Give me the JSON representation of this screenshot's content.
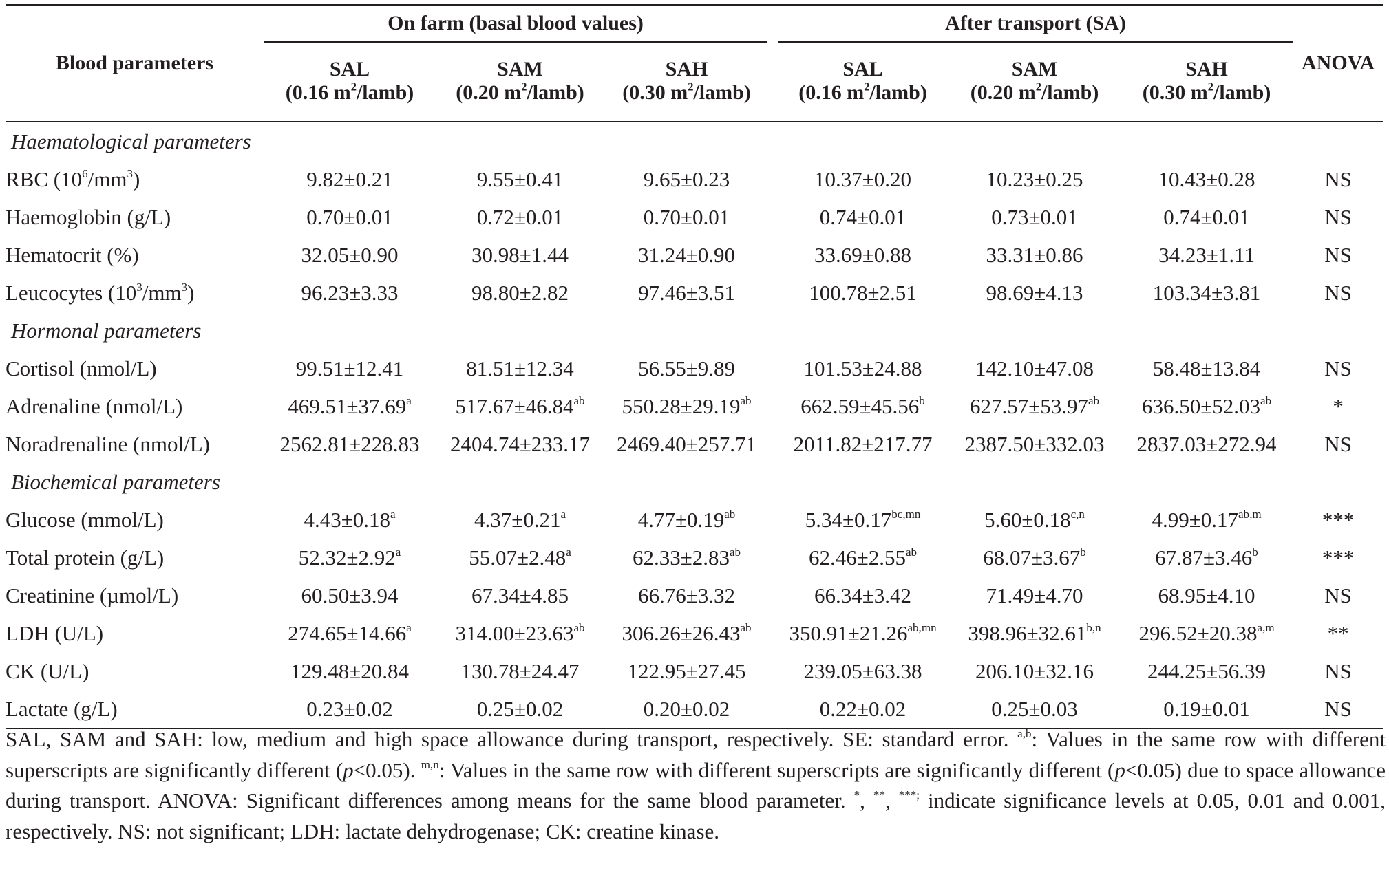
{
  "table": {
    "header": {
      "blood_parameters": "Blood parameters",
      "group_on_farm": "On farm (basal blood values)",
      "group_after_transport": "After transport (SA)",
      "anova": "ANOVA",
      "columns": [
        {
          "name": "SAL",
          "space": "(0.16 m",
          "sup": "2",
          "unit": "/lamb)"
        },
        {
          "name": "SAM",
          "space": "(0.20 m",
          "sup": "2",
          "unit": "/lamb)"
        },
        {
          "name": "SAH",
          "space": "(0.30 m",
          "sup": "2",
          "unit": "/lamb)"
        },
        {
          "name": "SAL",
          "space": "(0.16 m",
          "sup": "2",
          "unit": "/lamb)"
        },
        {
          "name": "SAM",
          "space": "(0.20 m",
          "sup": "2",
          "unit": "/lamb)"
        },
        {
          "name": "SAH",
          "space": "(0.30 m",
          "sup": "2",
          "unit": "/lamb)"
        }
      ]
    },
    "sections": [
      {
        "title": "Haematological parameters",
        "rows": [
          {
            "label": "RBC (10",
            "label_sup": "6",
            "label_mid": "/mm",
            "label_sup2": "3",
            "label_end": ")",
            "values": [
              {
                "v": "9.82±0.21"
              },
              {
                "v": "9.55±0.41"
              },
              {
                "v": "9.65±0.23"
              },
              {
                "v": "10.37±0.20"
              },
              {
                "v": "10.23±0.25"
              },
              {
                "v": "10.43±0.28"
              }
            ],
            "anova": "NS"
          },
          {
            "label": "Haemoglobin (g/L)",
            "values": [
              {
                "v": "0.70±0.01"
              },
              {
                "v": "0.72±0.01"
              },
              {
                "v": "0.70±0.01"
              },
              {
                "v": "0.74±0.01"
              },
              {
                "v": "0.73±0.01"
              },
              {
                "v": "0.74±0.01"
              }
            ],
            "anova": "NS"
          },
          {
            "label": "Hematocrit (%)",
            "values": [
              {
                "v": "32.05±0.90"
              },
              {
                "v": "30.98±1.44"
              },
              {
                "v": "31.24±0.90"
              },
              {
                "v": "33.69±0.88"
              },
              {
                "v": "33.31±0.86"
              },
              {
                "v": "34.23±1.11"
              }
            ],
            "anova": "NS"
          },
          {
            "label": "Leucocytes (10",
            "label_sup": "3",
            "label_mid": "/mm",
            "label_sup2": "3",
            "label_end": ")",
            "values": [
              {
                "v": "96.23±3.33"
              },
              {
                "v": "98.80±2.82"
              },
              {
                "v": "97.46±3.51"
              },
              {
                "v": "100.78±2.51"
              },
              {
                "v": "98.69±4.13"
              },
              {
                "v": "103.34±3.81"
              }
            ],
            "anova": "NS"
          }
        ]
      },
      {
        "title": "Hormonal parameters",
        "rows": [
          {
            "label": "Cortisol (nmol/L)",
            "values": [
              {
                "v": "99.51±12.41"
              },
              {
                "v": "81.51±12.34"
              },
              {
                "v": "56.55±9.89"
              },
              {
                "v": "101.53±24.88"
              },
              {
                "v": "142.10±47.08"
              },
              {
                "v": "58.48±13.84"
              }
            ],
            "anova": "NS"
          },
          {
            "label": "Adrenaline (nmol/L)",
            "values": [
              {
                "v": "469.51±37.69",
                "sup": "a"
              },
              {
                "v": "517.67±46.84",
                "sup": "ab"
              },
              {
                "v": "550.28±29.19",
                "sup": "ab"
              },
              {
                "v": "662.59±45.56",
                "sup": "b"
              },
              {
                "v": "627.57±53.97",
                "sup": "ab"
              },
              {
                "v": "636.50±52.03",
                "sup": "ab"
              }
            ],
            "anova": "*"
          },
          {
            "label": "Noradrenaline (nmol/L)",
            "values": [
              {
                "v": "2562.81±228.83"
              },
              {
                "v": "2404.74±233.17"
              },
              {
                "v": "2469.40±257.71"
              },
              {
                "v": "2011.82±217.77"
              },
              {
                "v": "2387.50±332.03"
              },
              {
                "v": "2837.03±272.94"
              }
            ],
            "anova": "NS"
          }
        ]
      },
      {
        "title": "Biochemical parameters",
        "rows": [
          {
            "label": "Glucose (mmol/L)",
            "values": [
              {
                "v": "4.43±0.18",
                "sup": "a"
              },
              {
                "v": "4.37±0.21",
                "sup": "a"
              },
              {
                "v": "4.77±0.19",
                "sup": "ab"
              },
              {
                "v": "5.34±0.17",
                "sup": "bc,mn"
              },
              {
                "v": "5.60±0.18",
                "sup": "c,n"
              },
              {
                "v": "4.99±0.17",
                "sup": "ab,m"
              }
            ],
            "anova": "***"
          },
          {
            "label": "Total protein (g/L)",
            "values": [
              {
                "v": "52.32±2.92",
                "sup": "a"
              },
              {
                "v": "55.07±2.48",
                "sup": "a"
              },
              {
                "v": "62.33±2.83",
                "sup": "ab"
              },
              {
                "v": "62.46±2.55",
                "sup": "ab"
              },
              {
                "v": "68.07±3.67",
                "sup": "b"
              },
              {
                "v": "67.87±3.46",
                "sup": "b"
              }
            ],
            "anova": "***"
          },
          {
            "label": "Creatinine (µmol/L)",
            "values": [
              {
                "v": "60.50±3.94"
              },
              {
                "v": "67.34±4.85"
              },
              {
                "v": "66.76±3.32"
              },
              {
                "v": "66.34±3.42"
              },
              {
                "v": "71.49±4.70"
              },
              {
                "v": "68.95±4.10"
              }
            ],
            "anova": "NS"
          },
          {
            "label": "LDH (U/L)",
            "values": [
              {
                "v": "274.65±14.66",
                "sup": "a"
              },
              {
                "v": "314.00±23.63",
                "sup": "ab"
              },
              {
                "v": "306.26±26.43",
                "sup": "ab"
              },
              {
                "v": "350.91±21.26",
                "sup": "ab,mn"
              },
              {
                "v": "398.96±32.61",
                "sup": "b,n"
              },
              {
                "v": "296.52±20.38",
                "sup": "a,m"
              }
            ],
            "anova": "**"
          },
          {
            "label": "CK (U/L)",
            "values": [
              {
                "v": "129.48±20.84"
              },
              {
                "v": "130.78±24.47"
              },
              {
                "v": "122.95±27.45"
              },
              {
                "v": "239.05±63.38"
              },
              {
                "v": "206.10±32.16"
              },
              {
                "v": "244.25±56.39"
              }
            ],
            "anova": "NS"
          },
          {
            "label": "Lactate (g/L)",
            "values": [
              {
                "v": "0.23±0.02"
              },
              {
                "v": "0.25±0.02"
              },
              {
                "v": "0.20±0.02"
              },
              {
                "v": "0.22±0.02"
              },
              {
                "v": "0.25±0.03"
              },
              {
                "v": "0.19±0.01"
              }
            ],
            "anova": "NS"
          }
        ]
      }
    ]
  },
  "footnote": {
    "t1": "SAL, SAM and SAH: low, medium and high space allowance during transport, respectively. SE: standard error. ",
    "s1": "a,b",
    "t2": ": Values in the same row with different superscripts are significantly different (",
    "p1": "p",
    "t3": "<0.05).  ",
    "s2": "m,n",
    "t4": ": Values in the same row with different superscripts are significantly different (",
    "p2": "p",
    "t5": "<0.05) due to space allowance during transport.  ANOVA: Significant differences among means for the same blood parameter.  ",
    "s3": "*",
    "t6": ", ",
    "s4": "**",
    "t7": ", ",
    "s5": "***;",
    "t8": " indicate significance levels at 0.05, 0.01 and 0.001, respectively.  NS: not significant; LDH: lactate dehydrogenase; CK: creatine kinase."
  }
}
